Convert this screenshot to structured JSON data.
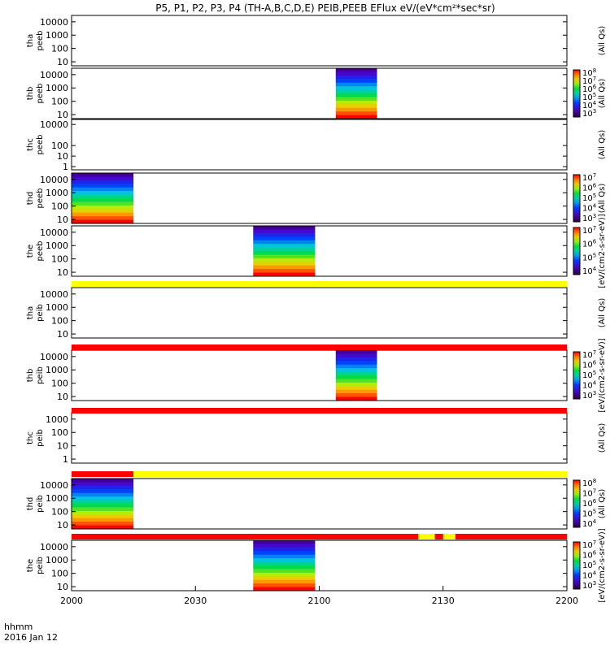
{
  "chart_data": {
    "type": "heatmap",
    "title": "P5, P1, P2, P3, P4 (TH-A,B,C,D,E) PEIB,PEEB EFlux eV/(eV*cm²*sec*sr)",
    "x_ticks": [
      "2000",
      "2030",
      "2100",
      "2130",
      "2200"
    ],
    "x_label_line1": "hhmm",
    "x_label_line2": "2016 Jan 12",
    "time_range": [
      "2000",
      "2200"
    ],
    "panels": [
      {
        "label": [
          "tha",
          "peeb"
        ],
        "y_ticks": [
          "10000",
          "1000",
          "100",
          "10"
        ],
        "y_min": 5,
        "y_max": 30000,
        "data_window": null,
        "colorbar": false,
        "side_label": "(All Qs)"
      },
      {
        "label": [
          "thb",
          "peeb"
        ],
        "y_ticks": [
          "10000",
          "1000",
          "100",
          "10"
        ],
        "y_min": 5,
        "y_max": 30000,
        "data_window": [
          "2104",
          "2114"
        ],
        "colorbar": true,
        "cbar_ticks": [
          "10^8",
          "10^7",
          "10^6",
          "10^5",
          "10^4",
          "10^3"
        ],
        "side_label": "(All Qs)"
      },
      {
        "label": [
          "thc",
          "peeb"
        ],
        "y_ticks": [
          "10000",
          "100",
          "10",
          "1"
        ],
        "y_min": 0.5,
        "y_max": 30000,
        "data_window": null,
        "colorbar": false,
        "side_label": "(All Qs)"
      },
      {
        "label": [
          "thd",
          "peeb"
        ],
        "y_ticks": [
          "10000",
          "1000",
          "100",
          "10"
        ],
        "y_min": 5,
        "y_max": 30000,
        "data_window": [
          "2000",
          "2015"
        ],
        "colorbar": true,
        "cbar_ticks": [
          "10^7",
          "10^6",
          "10^5",
          "10^4",
          "10^3"
        ],
        "side_label": "(All Qs)"
      },
      {
        "label": [
          "the",
          "peeb"
        ],
        "y_ticks": [
          "10000",
          "1000",
          "100",
          "10"
        ],
        "y_min": 5,
        "y_max": 30000,
        "data_window": [
          "2044",
          "2059"
        ],
        "colorbar": true,
        "cbar_ticks": [
          "10^7",
          "10^6",
          "10^5",
          "10^4"
        ],
        "side_label": "[eV/(cm2-s-sr-eV)]"
      },
      {
        "label": [
          "tha",
          "peib"
        ],
        "y_ticks": [
          "10000",
          "1000",
          "100",
          "10"
        ],
        "y_min": 5,
        "y_max": 30000,
        "data_window": null,
        "colorbar": false,
        "side_label": "(All Qs)"
      },
      {
        "label": [
          "thb",
          "peib"
        ],
        "y_ticks": [
          "10000",
          "1000",
          "100",
          "10"
        ],
        "y_min": 5,
        "y_max": 30000,
        "data_window": [
          "2104",
          "2114"
        ],
        "colorbar": true,
        "cbar_ticks": [
          "10^7",
          "10^6",
          "10^5",
          "10^4",
          "10^3"
        ],
        "side_label": "[eV/(cm2-s-sr-eV)]"
      },
      {
        "label": [
          "thc",
          "peib"
        ],
        "y_ticks": [
          "1000",
          "100",
          "10",
          "1"
        ],
        "y_min": 0.5,
        "y_max": 3000,
        "data_window": null,
        "colorbar": false,
        "side_label": "(All Qs)"
      },
      {
        "label": [
          "thd",
          "peib"
        ],
        "y_ticks": [
          "10000",
          "1000",
          "100",
          "10"
        ],
        "y_min": 5,
        "y_max": 30000,
        "data_window": [
          "2000",
          "2015"
        ],
        "colorbar": true,
        "cbar_ticks": [
          "10^8",
          "10^7",
          "10^6",
          "10^5",
          "10^4"
        ],
        "side_label": "(All Qs)"
      },
      {
        "label": [
          "the",
          "peib"
        ],
        "y_ticks": [
          "10000",
          "1000",
          "100",
          "10"
        ],
        "y_min": 5,
        "y_max": 30000,
        "data_window": [
          "2044",
          "2059"
        ],
        "colorbar": true,
        "cbar_ticks": [
          "10^7",
          "10^6",
          "10^5",
          "10^4",
          "10^3"
        ],
        "side_label": "[eV/(cm2-s-sr-eV)]"
      }
    ],
    "status_bars": [
      {
        "segments": [
          {
            "from": "2000",
            "to": "2200",
            "color": "#ffff00"
          }
        ]
      },
      {
        "segments": [
          {
            "from": "2000",
            "to": "2200",
            "color": "#ff0000"
          }
        ]
      },
      {
        "segments": [
          {
            "from": "2000",
            "to": "2200",
            "color": "#ff0000"
          }
        ]
      },
      {
        "segments": [
          {
            "from": "2000",
            "to": "2015",
            "color": "#ff0000"
          },
          {
            "from": "2015",
            "to": "2200",
            "color": "#ffff00"
          }
        ]
      },
      {
        "segments": [
          {
            "from": "2000",
            "to": "2200",
            "color": "#ff0000"
          },
          {
            "from": "2124",
            "to": "2128",
            "color": "#ffff00"
          },
          {
            "from": "2130",
            "to": "2133",
            "color": "#ffff00"
          }
        ]
      }
    ]
  }
}
